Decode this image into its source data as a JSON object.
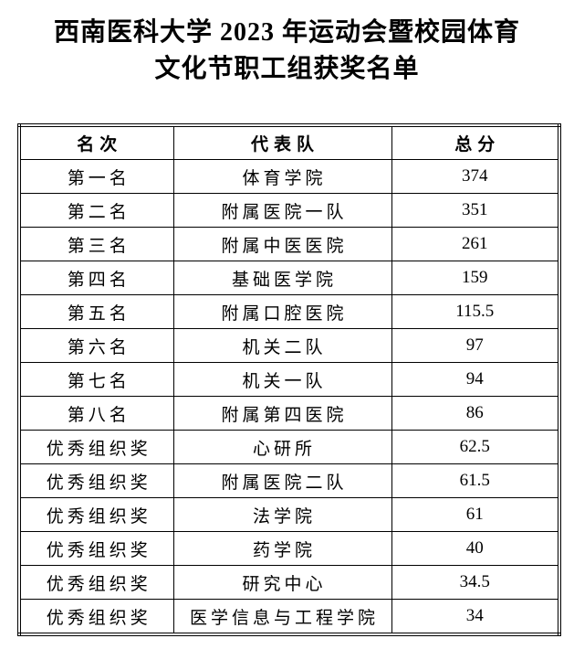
{
  "title": {
    "line1": "西南医科大学 2023 年运动会暨校园体育",
    "line2": "文化节职工组获奖名单"
  },
  "table": {
    "headers": [
      "名次",
      "代表队",
      "总分"
    ],
    "rows": [
      [
        "第一名",
        "体育学院",
        "374"
      ],
      [
        "第二名",
        "附属医院一队",
        "351"
      ],
      [
        "第三名",
        "附属中医医院",
        "261"
      ],
      [
        "第四名",
        "基础医学院",
        "159"
      ],
      [
        "第五名",
        "附属口腔医院",
        "115.5"
      ],
      [
        "第六名",
        "机关二队",
        "97"
      ],
      [
        "第七名",
        "机关一队",
        "94"
      ],
      [
        "第八名",
        "附属第四医院",
        "86"
      ],
      [
        "优秀组织奖",
        "心研所",
        "62.5"
      ],
      [
        "优秀组织奖",
        "附属医院二队",
        "61.5"
      ],
      [
        "优秀组织奖",
        "法学院",
        "61"
      ],
      [
        "优秀组织奖",
        "药学院",
        "40"
      ],
      [
        "优秀组织奖",
        "研究中心",
        "34.5"
      ],
      [
        "优秀组织奖",
        "医学信息与工程学院",
        "34"
      ]
    ]
  },
  "colors": {
    "text": "#000000",
    "border": "#000000",
    "background": "#ffffff"
  }
}
